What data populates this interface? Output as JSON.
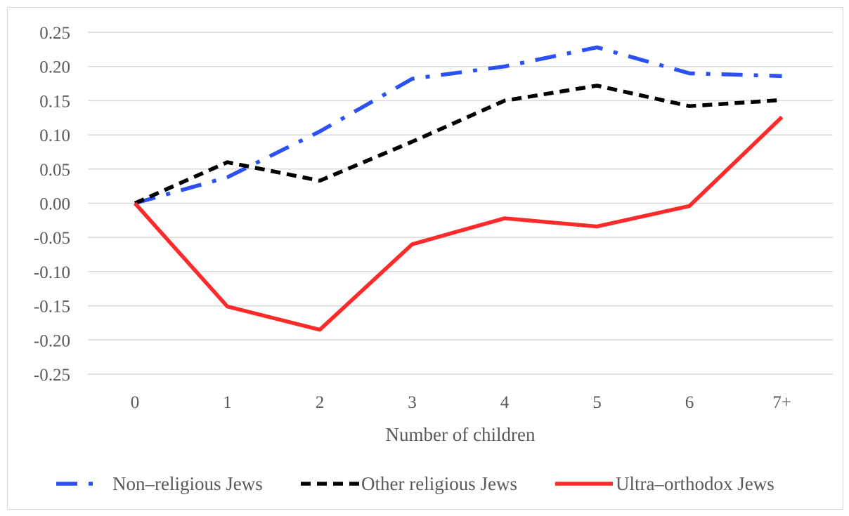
{
  "chart_data": {
    "type": "line",
    "categories": [
      "0",
      "1",
      "2",
      "3",
      "4",
      "5",
      "6",
      "7+"
    ],
    "xlabel": "Number of children",
    "ylabel": "",
    "ylim": [
      -0.25,
      0.25
    ],
    "yticks": [
      "0.25",
      "0.20",
      "0.15",
      "0.10",
      "0.05",
      "0.00",
      "-0.05",
      "-0.10",
      "-0.15",
      "-0.20",
      "-0.25"
    ],
    "grid": true,
    "legend_position": "bottom",
    "series": [
      {
        "name": "Non–religious Jews",
        "color": "#2b50f5",
        "dash": "dash-dot",
        "values": [
          0.0,
          0.038,
          0.105,
          0.182,
          0.2,
          0.228,
          0.19,
          0.186
        ]
      },
      {
        "name": "Other religious Jews",
        "color": "#000000",
        "dash": "dash",
        "values": [
          0.0,
          0.06,
          0.033,
          0.09,
          0.15,
          0.172,
          0.142,
          0.151
        ]
      },
      {
        "name": "Ultra–orthodox Jews",
        "color": "#ff2a2a",
        "dash": "solid",
        "values": [
          0.0,
          -0.151,
          -0.185,
          -0.06,
          -0.022,
          -0.034,
          -0.004,
          0.126
        ]
      }
    ]
  }
}
